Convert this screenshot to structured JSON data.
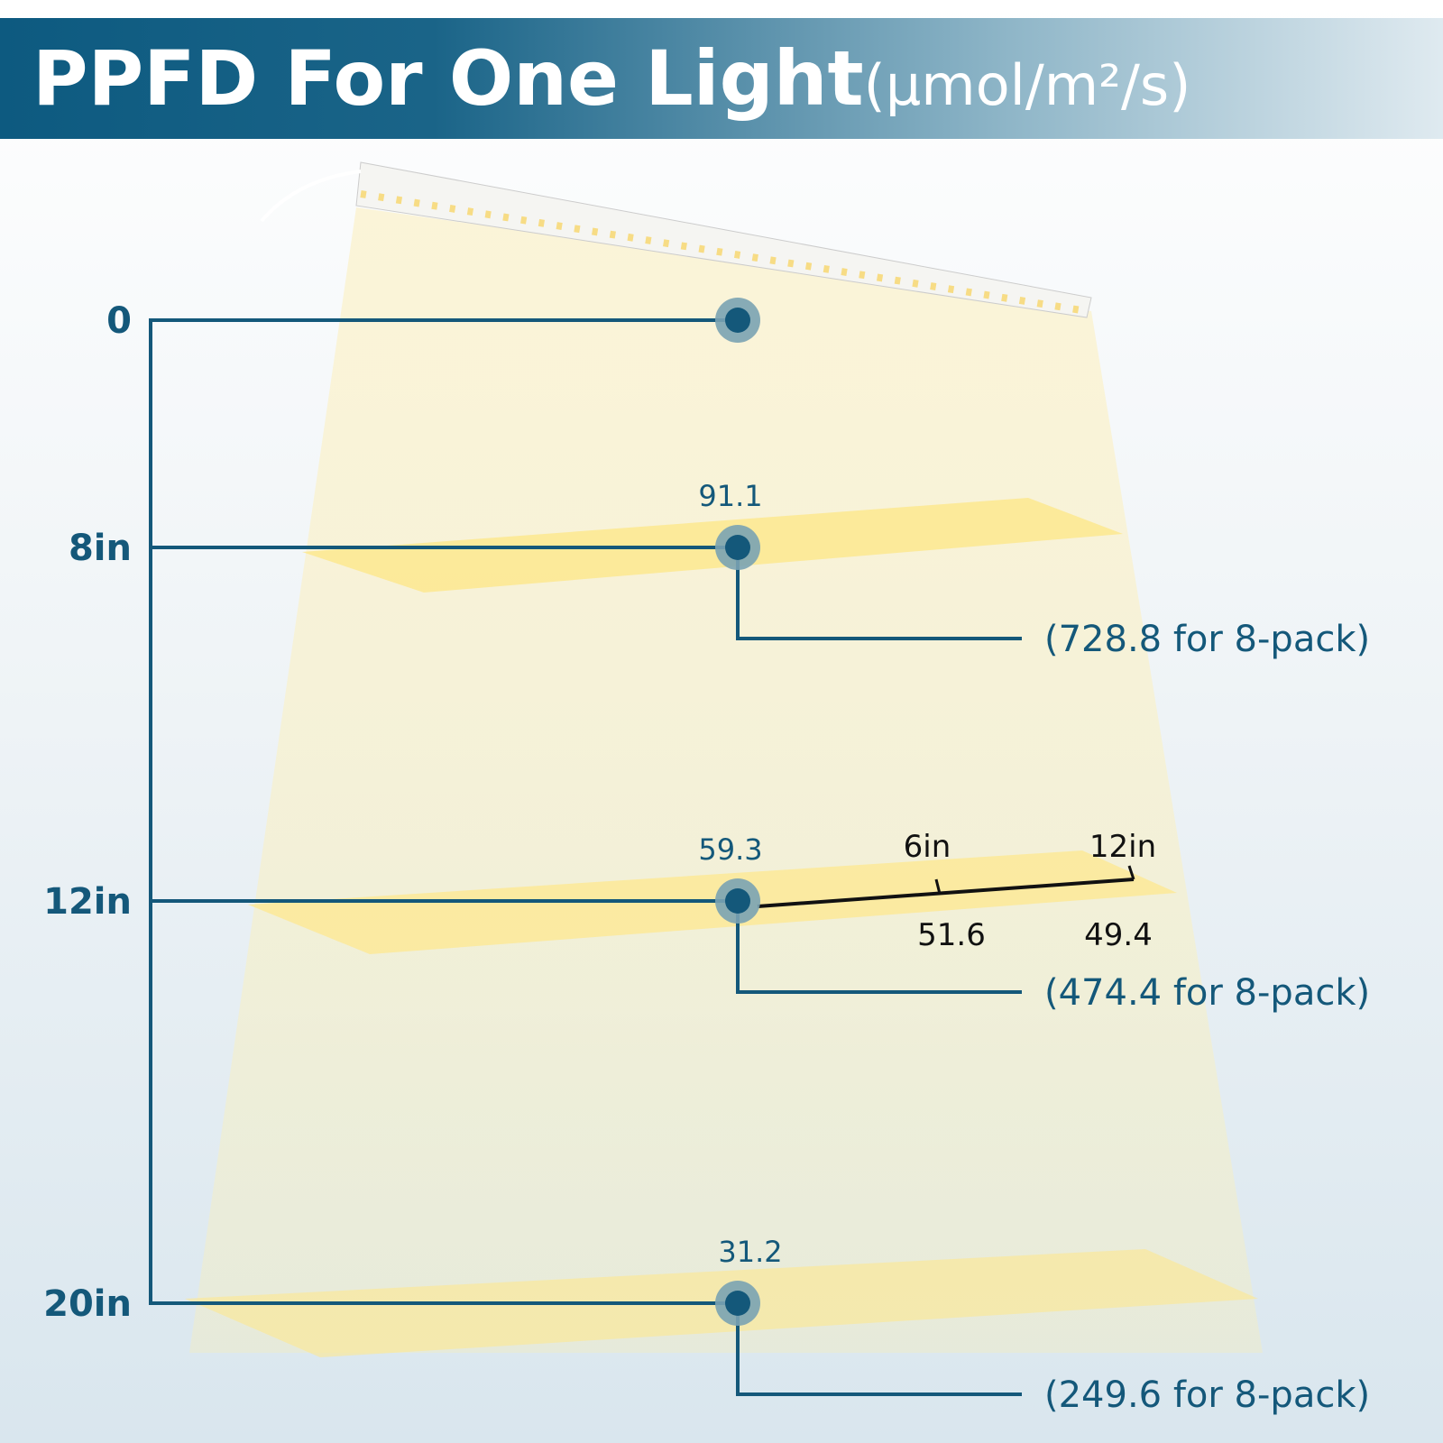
{
  "header": {
    "title": "PPFD For One Light",
    "unit": "(μmol/m²/s)"
  },
  "levels": [
    {
      "distance": "0"
    },
    {
      "distance": "8in",
      "value": "91.1",
      "pack_note": "(728.8 for 8-pack)"
    },
    {
      "distance": "12in",
      "value": "59.3",
      "pack_note": "(474.4 for 8-pack)"
    },
    {
      "distance": "20in",
      "value": "31.2",
      "pack_note": "(249.6 for 8-pack)"
    }
  ],
  "offsets": [
    {
      "label": "6in",
      "value": "51.6"
    },
    {
      "label": "12in",
      "value": "49.4"
    }
  ]
}
